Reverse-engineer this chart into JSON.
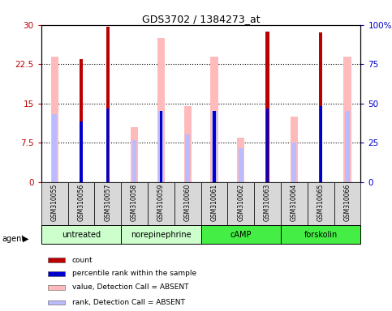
{
  "title": "GDS3702 / 1384273_at",
  "samples": [
    "GSM310055",
    "GSM310056",
    "GSM310057",
    "GSM310058",
    "GSM310059",
    "GSM310060",
    "GSM310061",
    "GSM310062",
    "GSM310063",
    "GSM310064",
    "GSM310065",
    "GSM310066"
  ],
  "group_configs": [
    {
      "label": "untreated",
      "start": 0,
      "end": 2,
      "color": "#ccffcc"
    },
    {
      "label": "norepinephrine",
      "start": 3,
      "end": 5,
      "color": "#ccffcc"
    },
    {
      "label": "cAMP",
      "start": 6,
      "end": 8,
      "color": "#44ee44"
    },
    {
      "label": "forskolin",
      "start": 9,
      "end": 11,
      "color": "#44ee44"
    }
  ],
  "count_values": [
    0,
    23.5,
    29.6,
    0,
    0,
    0,
    0,
    0,
    28.7,
    0,
    28.6,
    0
  ],
  "percentile_rank": [
    null,
    11.5,
    14.0,
    null,
    13.5,
    null,
    13.5,
    null,
    14.0,
    null,
    14.5,
    null
  ],
  "value_absent": [
    24.0,
    null,
    null,
    10.5,
    27.5,
    14.5,
    24.0,
    8.5,
    null,
    12.5,
    null,
    24.0
  ],
  "rank_absent": [
    13.0,
    null,
    null,
    8.0,
    13.5,
    9.0,
    13.5,
    6.5,
    null,
    7.5,
    null,
    13.5
  ],
  "ylim_left": [
    0,
    30
  ],
  "ylim_right": [
    0,
    100
  ],
  "yticks_left": [
    0,
    7.5,
    15,
    22.5,
    30
  ],
  "yticks_right": [
    0,
    25,
    50,
    75,
    100
  ],
  "count_color": "#bb0000",
  "percentile_color": "#0000cc",
  "value_absent_color": "#ffbbbb",
  "rank_absent_color": "#bbbbff",
  "legend_items": [
    {
      "color": "#bb0000",
      "label": "count"
    },
    {
      "color": "#0000cc",
      "label": "percentile rank within the sample"
    },
    {
      "color": "#ffbbbb",
      "label": "value, Detection Call = ABSENT"
    },
    {
      "color": "#bbbbff",
      "label": "rank, Detection Call = ABSENT"
    }
  ]
}
